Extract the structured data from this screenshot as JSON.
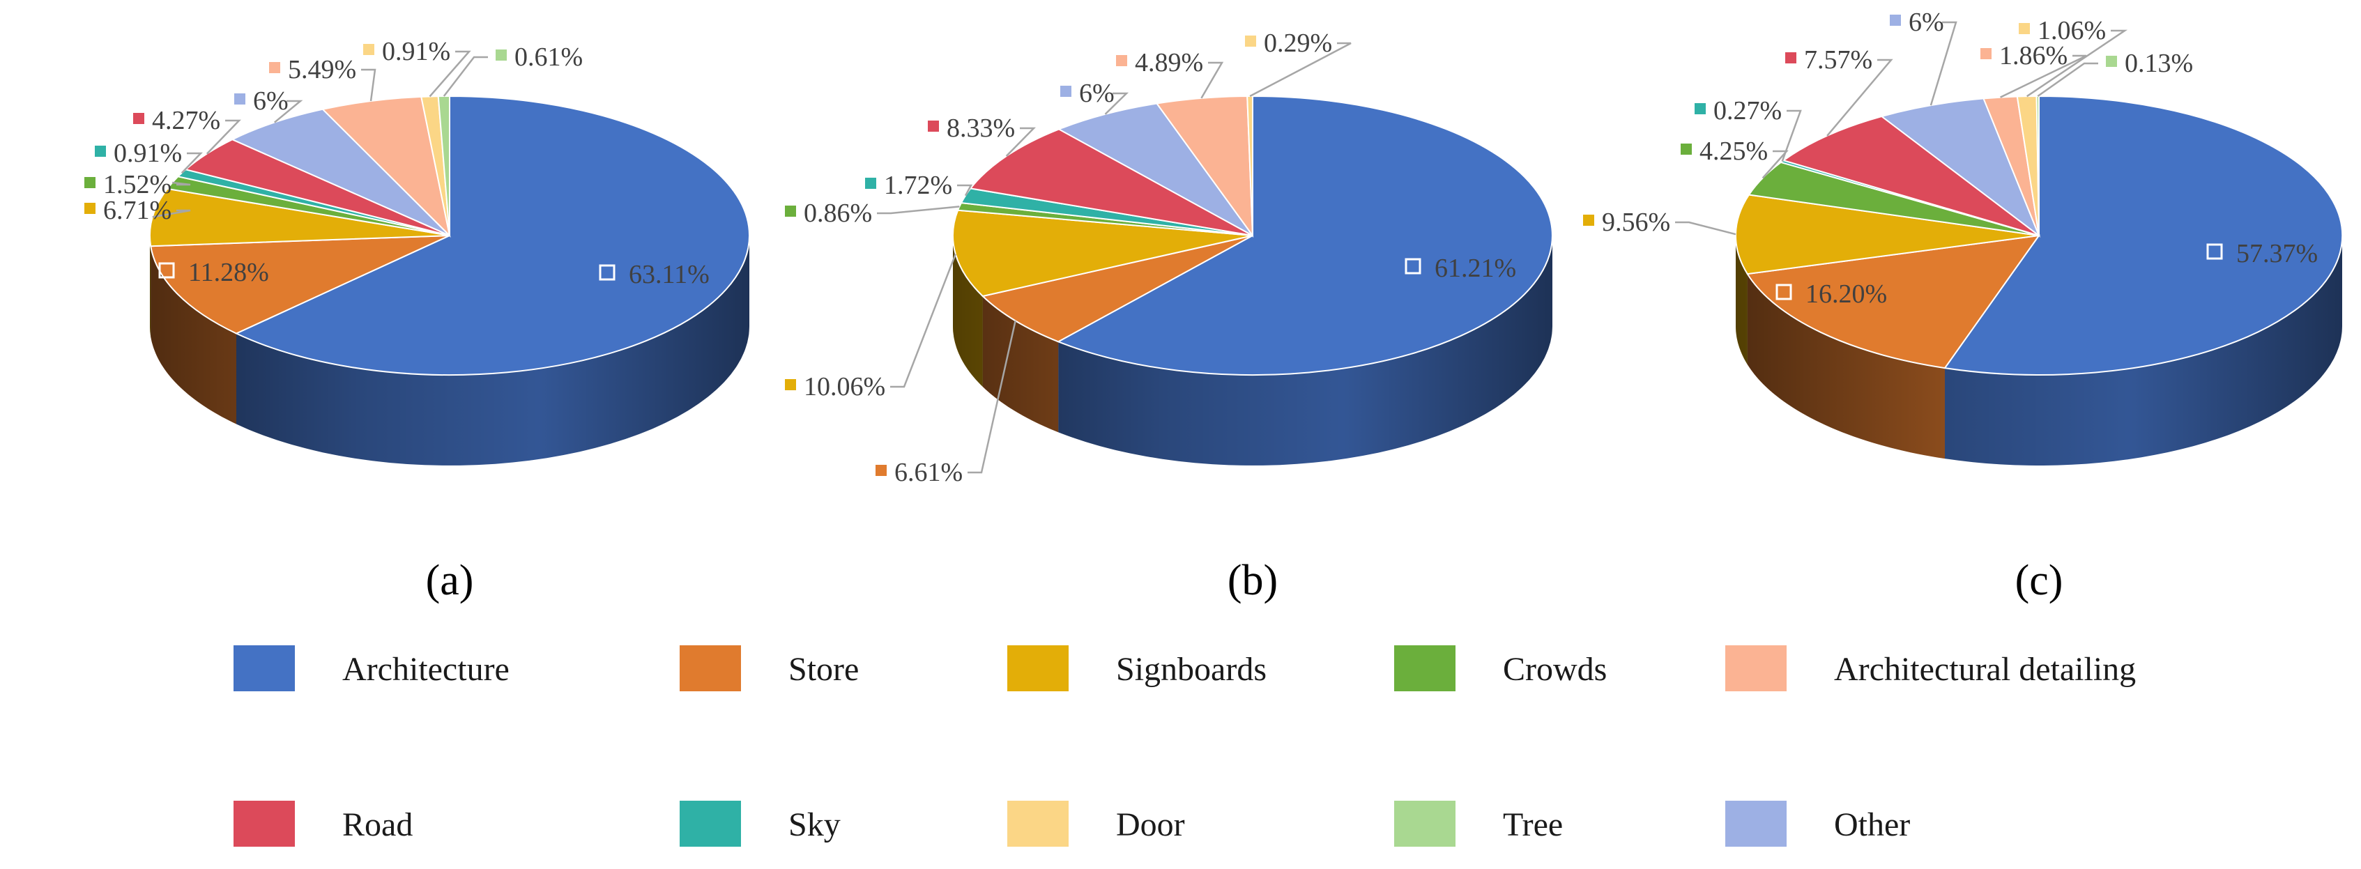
{
  "chart_data": [
    {
      "type": "pie",
      "caption": "(a)",
      "categories": [
        "Architecture",
        "Store",
        "Signboards",
        "Crowds",
        "Sky",
        "Road",
        "Other",
        "Architectural detailing",
        "Door",
        "Tree"
      ],
      "values": [
        63.11,
        11.28,
        6.71,
        1.52,
        0.91,
        4.27,
        6,
        5.49,
        0.91,
        0.61
      ],
      "labels": [
        "63.11%",
        "11.28%",
        "6.71%",
        "1.52%",
        "0.91%",
        "4.27%",
        "6%",
        "5.49%",
        "0.91%",
        "0.61%"
      ]
    },
    {
      "type": "pie",
      "caption": "(b)",
      "categories": [
        "Architecture",
        "Store",
        "Signboards",
        "Crowds",
        "Sky",
        "Road",
        "Other",
        "Architectural detailing",
        "Door"
      ],
      "values": [
        61.21,
        6.61,
        10.06,
        0.86,
        1.72,
        8.33,
        6,
        4.89,
        0.29
      ],
      "labels": [
        "61.21%",
        "6.61%",
        "10.06%",
        "0.86%",
        "1.72%",
        "8.33%",
        "6%",
        "4.89%",
        "0.29%"
      ]
    },
    {
      "type": "pie",
      "caption": "(c)",
      "categories": [
        "Architecture",
        "Store",
        "Signboards",
        "Crowds",
        "Sky",
        "Road",
        "Other",
        "Architectural detailing",
        "Door",
        "Tree"
      ],
      "values": [
        57.37,
        16.2,
        9.56,
        4.25,
        0.27,
        7.57,
        6,
        1.86,
        1.06,
        0.13
      ],
      "labels": [
        "57.37%",
        "16.20%",
        "9.56%",
        "4.25%",
        "0.27%",
        "7.57%",
        "6%",
        "1.86%",
        "1.06%",
        "0.13%"
      ]
    }
  ],
  "legend": [
    {
      "name": "Architecture",
      "color": "#4472C4"
    },
    {
      "name": "Store",
      "color": "#E07B2E"
    },
    {
      "name": "Signboards",
      "color": "#E3AE08"
    },
    {
      "name": "Crowds",
      "color": "#6BAF3C"
    },
    {
      "name": "Architectural detailing",
      "color": "#FBB393"
    },
    {
      "name": "Road",
      "color": "#DC4A5A"
    },
    {
      "name": "Sky",
      "color": "#2FB1A6"
    },
    {
      "name": "Door",
      "color": "#FBD686"
    },
    {
      "name": "Tree",
      "color": "#A9D891"
    },
    {
      "name": "Other",
      "color": "#9DB0E4"
    }
  ]
}
